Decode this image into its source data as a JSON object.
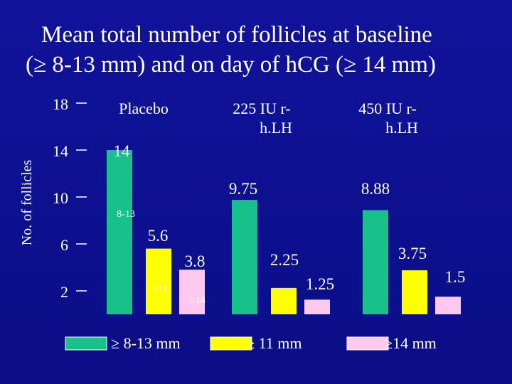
{
  "slide": {
    "title_line1": "Mean total number of follicles at baseline",
    "title_line2": "(≥ 8-13 mm) and on day of hCG (≥ 14 mm)"
  },
  "colors": {
    "background": "#0d1090",
    "series_8_13": "#18c08a",
    "series_11": "#ffff00",
    "series_14": "#ffc8ee"
  },
  "chart_data": {
    "type": "bar",
    "ylabel": "No. of  follicles",
    "yticks": [
      18,
      14,
      10,
      6,
      2
    ],
    "ylim": [
      0,
      19
    ],
    "categories": [
      "Placebo",
      "225 IU r-\nh.LH",
      "450 IU r-\nh.LH"
    ],
    "series": [
      {
        "name": "≥ 8-13 mm",
        "color": "#18c08a",
        "values": [
          14,
          9.75,
          8.88
        ],
        "labels": [
          "14",
          "9.75",
          "8.88"
        ]
      },
      {
        "name": "≥ 11 mm",
        "color": "#ffff00",
        "values": [
          5.6,
          2.25,
          3.75
        ],
        "labels": [
          "5.6",
          "2.25",
          "3.75"
        ]
      },
      {
        "name": "≥14 mm",
        "color": "#ffc8ee",
        "values": [
          3.8,
          1.25,
          1.5
        ],
        "labels": [
          "3.8",
          "1.25",
          "1.5"
        ]
      }
    ],
    "annotations": [
      "8-13",
      "≥11",
      "≥14"
    ],
    "legend_position": "bottom",
    "grid": false
  }
}
